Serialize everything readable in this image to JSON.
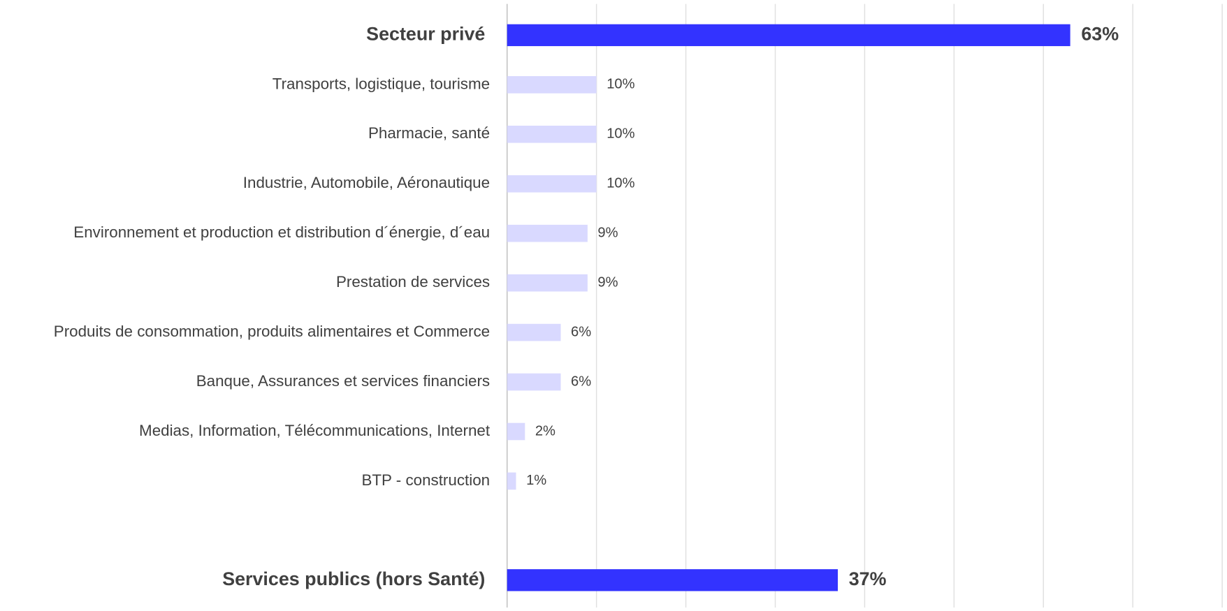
{
  "chart_data": {
    "type": "barh",
    "categories": [
      "Secteur privé",
      "Transports, logistique, tourisme",
      "Pharmacie, santé",
      "Industrie, Automobile, Aéronautique",
      "Environnement et production et distribution d´énergie, d´eau",
      "Prestation de services",
      "Produits de consommation, produits alimentaires et Commerce",
      "Banque, Assurances et services financiers",
      "Medias, Information, Télécommunications, Internet",
      "BTP - construction",
      null,
      "Services publics (hors Santé)"
    ],
    "values": [
      63,
      10,
      10,
      10,
      9,
      9,
      6,
      6,
      2,
      1,
      null,
      37
    ],
    "value_labels": [
      "63%",
      "10%",
      "10%",
      "10%",
      "9%",
      "9%",
      "6%",
      "6%",
      "2%",
      "1%",
      null,
      "37%"
    ],
    "colors": [
      "#3333ff",
      "#d9d9ff",
      "#d9d9ff",
      "#d9d9ff",
      "#d9d9ff",
      "#d9d9ff",
      "#d9d9ff",
      "#d9d9ff",
      "#d9d9ff",
      "#d9d9ff",
      null,
      "#3333ff"
    ],
    "xlim": [
      0,
      80
    ],
    "xticks": [
      0,
      10,
      20,
      30,
      40,
      50,
      60,
      70,
      80
    ],
    "grid": true
  }
}
